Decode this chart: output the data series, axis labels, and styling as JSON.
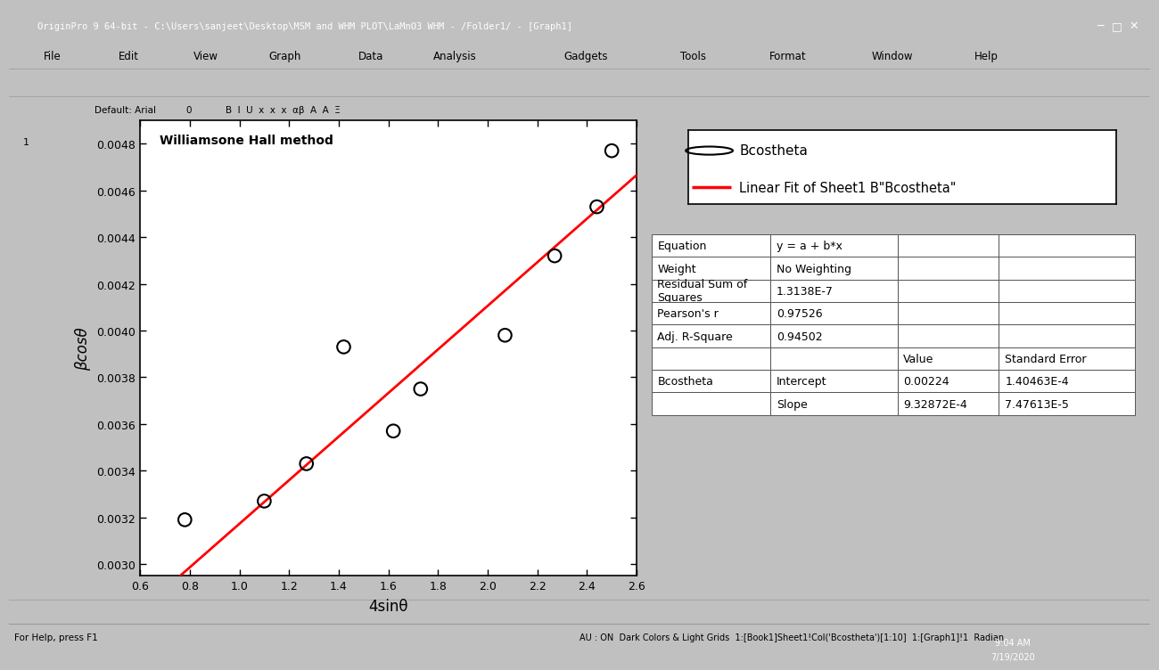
{
  "title_inside": "Williamsone Hall method",
  "xlabel": "4sinθ",
  "ylabel": "βcosθ",
  "x_data": [
    0.78,
    1.1,
    1.27,
    1.42,
    1.62,
    1.73,
    2.07,
    2.27,
    2.44,
    2.5
  ],
  "y_data": [
    0.00319,
    0.00327,
    0.00343,
    0.00393,
    0.00357,
    0.00375,
    0.00398,
    0.00432,
    0.00453,
    0.00477
  ],
  "intercept": 0.00224,
  "slope": 0.000932872,
  "xlim": [
    0.6,
    2.6
  ],
  "ylim": [
    0.00295,
    0.0049
  ],
  "xticks": [
    0.6,
    0.8,
    1.0,
    1.2,
    1.4,
    1.6,
    1.8,
    2.0,
    2.2,
    2.4,
    2.6
  ],
  "yticks": [
    0.003,
    0.0032,
    0.0034,
    0.0036,
    0.0038,
    0.004,
    0.0042,
    0.0044,
    0.0046,
    0.0048
  ],
  "scatter_edgecolor": "#000000",
  "line_color": "#ff0000",
  "bg_color": "#c0c0c0",
  "plot_bg": "#ffffff",
  "win_titlebar_color": "#1a3a6b",
  "win_titlebar_text": "OriginPro 9 64-bit - C:\\Users\\sanjeet\\Desktop\\MSM and WHM PLOT\\LaMnO3 WHM - /Folder1/ - [Graph1]",
  "menubar_items": [
    "File",
    "Edit",
    "View",
    "Graph",
    "Data",
    "Analysis",
    "Gadgets",
    "Tools",
    "Format",
    "Window",
    "Help"
  ],
  "table_data": {
    "Equation": "y = a + b*x",
    "Weight": "No Weighting",
    "Residual_Sum": "1.3138E-7",
    "Pearsons_r": "0.97526",
    "Adj_R_Square": "0.94502",
    "Intercept_value": "0.00224",
    "Intercept_error": "1.40463E-4",
    "Slope_value": "9.32872E-4",
    "Slope_error": "7.47613E-5"
  },
  "legend_line1": "Bcostheta",
  "legend_line2": "Linear Fit of Sheet1 B\"Bcostheta\"",
  "taskbar_color": "#1a1a2e",
  "statusbar_text": "For Help, press F1",
  "statusbar_text2": "AU : ON  Dark Colors & Light Grids  1:[Book1]Sheet1!Col('Bcostheta')[1:10]  1:[Graph1]!1  Radian",
  "bottom_time": "9:04 AM\n7/19/2020"
}
